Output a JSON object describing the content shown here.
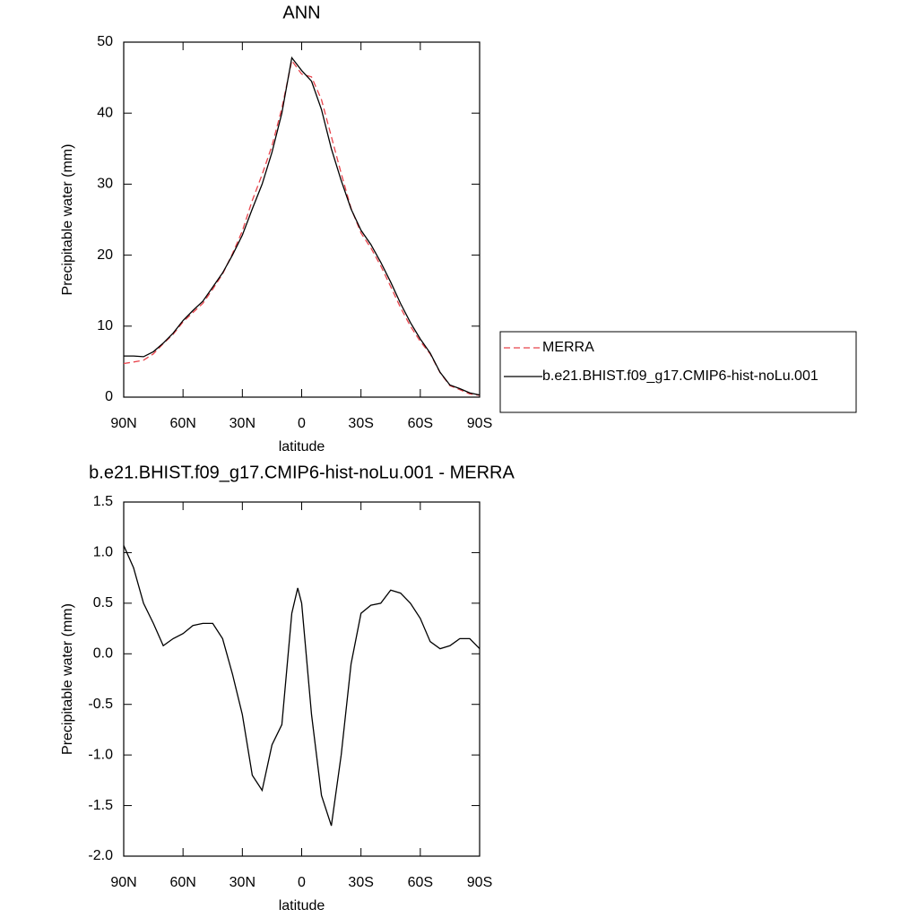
{
  "chart_data": [
    {
      "type": "line",
      "title": "ANN",
      "xlabel": "latitude",
      "ylabel": "Precipitable water (mm)",
      "x": [
        90,
        85,
        80,
        75,
        70,
        65,
        60,
        55,
        50,
        45,
        40,
        35,
        30,
        25,
        20,
        15,
        10,
        5,
        0,
        -5,
        -10,
        -15,
        -20,
        -25,
        -30,
        -35,
        -40,
        -45,
        -50,
        -55,
        -60,
        -65,
        -70,
        -75,
        -80,
        -85,
        -90
      ],
      "series": [
        {
          "name": "MERRA",
          "color": "#e8434b",
          "line_style": "dashed",
          "values": [
            4.73,
            4.95,
            5.2,
            6.1,
            7.52,
            8.85,
            10.6,
            11.92,
            13.2,
            15.2,
            17.35,
            20.2,
            23.4,
            27.7,
            31.35,
            35.4,
            40.7,
            47.4,
            45.5,
            45.1,
            41.9,
            36.7,
            31.5,
            26.6,
            23.1,
            21.02,
            18.5,
            15.57,
            12.6,
            10.0,
            7.85,
            6.08,
            3.45,
            1.62,
            1.05,
            0.45,
            0.25
          ]
        },
        {
          "name": "b.e21.BHIST.f09_g17.CMIP6-hist-noLu.001",
          "color": "#000000",
          "line_style": "solid",
          "values": [
            5.8,
            5.8,
            5.7,
            6.4,
            7.6,
            9.0,
            10.8,
            12.2,
            13.5,
            15.5,
            17.5,
            20.0,
            22.8,
            26.5,
            30.0,
            34.5,
            40.0,
            47.8,
            46.0,
            44.5,
            40.5,
            35.0,
            30.5,
            26.5,
            23.5,
            21.5,
            19.0,
            16.2,
            13.2,
            10.5,
            8.2,
            6.2,
            3.5,
            1.7,
            1.2,
            0.6,
            0.3
          ]
        }
      ],
      "xlim": [
        90,
        -90
      ],
      "xticks": [
        {
          "value": 90,
          "label": "90N"
        },
        {
          "value": 60,
          "label": "60N"
        },
        {
          "value": 30,
          "label": "30N"
        },
        0,
        {
          "value": -30,
          "label": "30S"
        },
        {
          "value": -60,
          "label": "60S"
        },
        {
          "value": -90,
          "label": "90S"
        }
      ],
      "ylim": [
        0,
        50
      ],
      "yticks": [
        0,
        10,
        20,
        30,
        40,
        50
      ],
      "grid": false,
      "legend": "right"
    },
    {
      "type": "line",
      "title": "b.e21.BHIST.f09_g17.CMIP6-hist-noLu.001 - MERRA",
      "xlabel": "latitude",
      "ylabel": "Precipitable water (mm)",
      "x": [
        90,
        85,
        80,
        75,
        70,
        65,
        60,
        55,
        50,
        45,
        40,
        35,
        30,
        25,
        20,
        15,
        10,
        5,
        2,
        0,
        -5,
        -10,
        -15,
        -20,
        -25,
        -30,
        -35,
        -40,
        -45,
        -50,
        -55,
        -60,
        -65,
        -70,
        -75,
        -80,
        -85,
        -90
      ],
      "color": "#000000",
      "values": [
        1.07,
        0.85,
        0.5,
        0.3,
        0.08,
        0.15,
        0.2,
        0.28,
        0.3,
        0.3,
        0.15,
        -0.2,
        -0.6,
        -1.2,
        -1.35,
        -0.9,
        -0.7,
        0.4,
        0.65,
        0.5,
        -0.6,
        -1.4,
        -1.7,
        -1.0,
        -0.1,
        0.4,
        0.48,
        0.5,
        0.63,
        0.6,
        0.5,
        0.35,
        0.12,
        0.05,
        0.08,
        0.15,
        0.15,
        0.05
      ],
      "xlim": [
        90,
        -90
      ],
      "xticks": [
        {
          "value": 90,
          "label": "90N"
        },
        {
          "value": 60,
          "label": "60N"
        },
        {
          "value": 30,
          "label": "30N"
        },
        0,
        {
          "value": -30,
          "label": "30S"
        },
        {
          "value": -60,
          "label": "60S"
        },
        {
          "value": -90,
          "label": "90S"
        }
      ],
      "ylim": [
        -2,
        1.5
      ],
      "yticks": [
        {
          "value": -2,
          "label": "-2.0"
        },
        -1.5,
        {
          "value": -1,
          "label": "-1.0"
        },
        -0.5,
        {
          "value": 0,
          "label": "0.0"
        },
        0.5,
        {
          "value": 1,
          "label": "1.0"
        },
        1.5
      ],
      "grid": false
    }
  ]
}
